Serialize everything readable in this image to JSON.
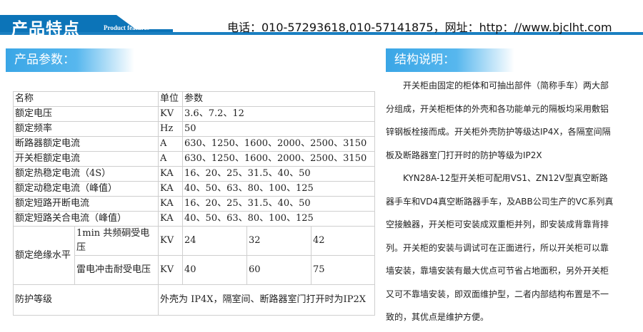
{
  "header": {
    "title": "产品特点",
    "subtitle": "Product features",
    "contact": "电话：010-57293618,010-57141875，网址：http：//www.bjclht.com"
  },
  "params": {
    "title": "产品参数：",
    "headers": [
      "名称",
      "单位",
      "参数"
    ],
    "rows": [
      [
        "额定电压",
        "KV",
        "3.6、7.2、12"
      ],
      [
        "额定频率",
        "Hz",
        "50"
      ],
      [
        "断路器额定电流",
        "A",
        "630、1250、1600、2000、2500、3150"
      ],
      [
        "开关柜额定电流",
        "A",
        "630、1250、1600、2000、2500、3150"
      ],
      [
        "额定热稳定电流（4S）",
        "KA",
        "16、20、25、31.5、40、50"
      ],
      [
        "额定动稳定电流（峰值）",
        "KA",
        "40、50、63、80、100、125"
      ],
      [
        "额定短路开断电流",
        "KA",
        "16、20、25、31.5、40、50"
      ],
      [
        "额定短路关合电流（峰值）",
        "KA",
        "40、50、63、80、100、125"
      ]
    ],
    "insulation": {
      "label": "额定绝缘水平",
      "rows": [
        {
          "name": "1min 共频硐受电压",
          "unit": "KV",
          "values": [
            "24",
            "32",
            "42"
          ]
        },
        {
          "name": "雷电冲击耐受电压",
          "unit": "KV",
          "values": [
            "40",
            "60",
            "75"
          ]
        }
      ]
    },
    "protection": {
      "label": "防护等级",
      "value": "外壳为 IP4X，隔室间、断路器室门打开时为IP2X"
    }
  },
  "structure": {
    "title": "结构说明：",
    "paragraphs": [
      "开关柜由固定的柜体和可抽出部件（简称手车）两大部分组成，开关柜柜体的外壳和各功能单元的隔板均采用敷铝锌钢板栓接而成。开关柜外壳防护等级达IP4X，各隔室间隔板及断路器室门打开时的防护等级为IP2X",
      "KYN28A-12型开关柜可配用VS1、ZN12V型真空断路器手车和VD4真空断路器手车，及ABB公司生产的VC系列真空接触器，开关柜可安装成双重柜并列，即安装成背靠背排列。开关柜的安装与调试可在正面进行，所以开关柜可以靠墙安装，靠墙安装有最大优点可节省占地面积，另外开关柜又可不靠墙安装，即双面维护型，二者内部结构布置是不一致的，其优点是维护方便。"
    ]
  },
  "colors": {
    "brand": "#0c74b8",
    "section": "#3aa6e6"
  }
}
